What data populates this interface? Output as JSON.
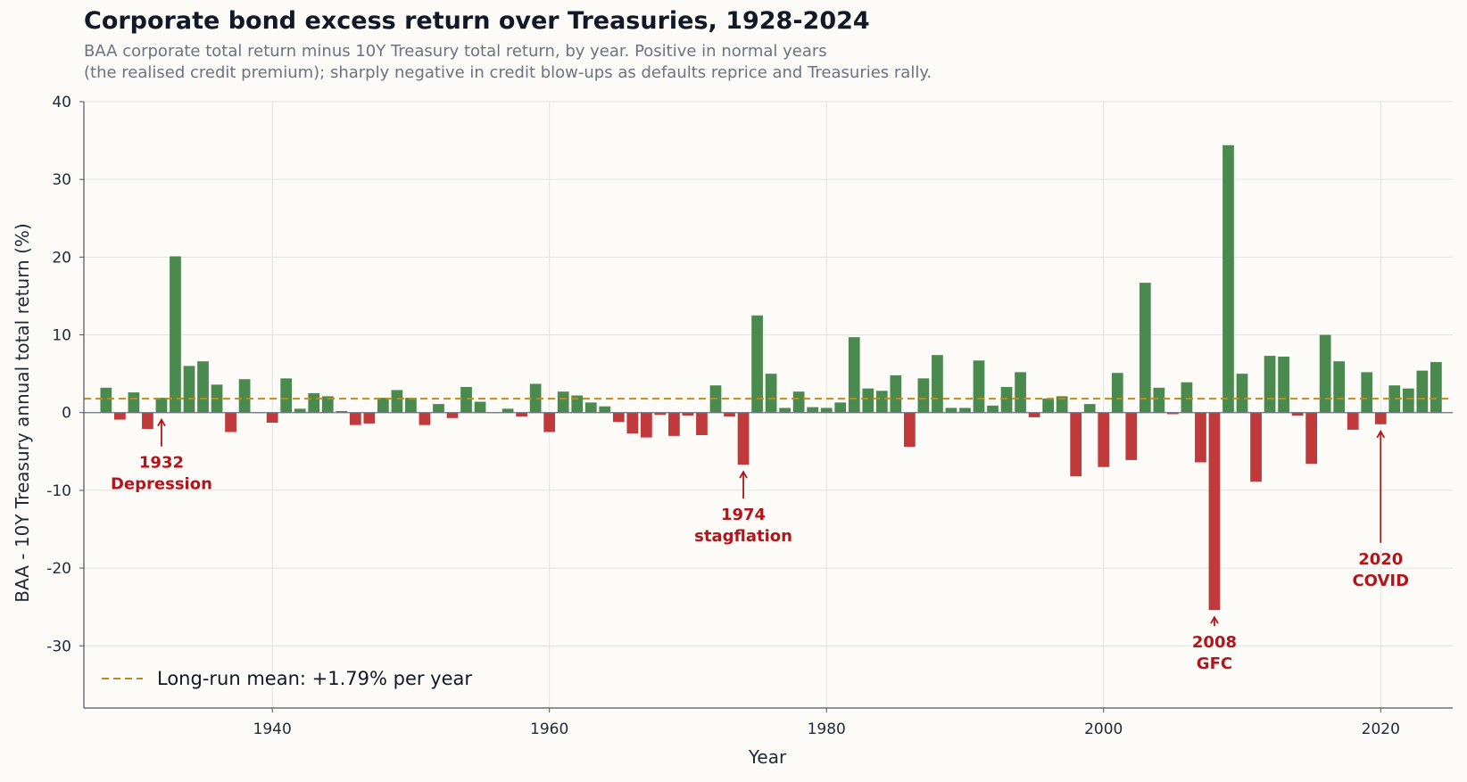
{
  "header": {
    "title": "Corporate bond excess return over Treasuries, 1928-2024",
    "subtitle_line1": "BAA corporate total return minus 10Y Treasury total return, by year. Positive in normal years",
    "subtitle_line2": "(the realised credit premium); sharply negative in credit blow-ups as defaults reprice and Treasuries rally."
  },
  "chart_data": {
    "type": "bar",
    "title": "Corporate bond excess return over Treasuries, 1928-2024",
    "xlabel": "Year",
    "ylabel": "BAA - 10Y Treasury annual total return (%)",
    "xlim": [
      1926.4,
      2025.2
    ],
    "ylim": [
      -38,
      40
    ],
    "xticks": [
      1940,
      1960,
      1980,
      2000,
      2020
    ],
    "yticks": [
      -30,
      -20,
      -10,
      0,
      10,
      20,
      30,
      40
    ],
    "grid": true,
    "legend_position": "bottom-left",
    "mean": {
      "value": 1.79,
      "label": "Long-run mean: +1.79% per year"
    },
    "colors": {
      "positive": "#4a8a4e",
      "negative": "#c0393b",
      "mean": "#c08a1a",
      "annotation": "#b0161c"
    },
    "years": [
      1928,
      1929,
      1930,
      1931,
      1932,
      1933,
      1934,
      1935,
      1936,
      1937,
      1938,
      1939,
      1940,
      1941,
      1942,
      1943,
      1944,
      1945,
      1946,
      1947,
      1948,
      1949,
      1950,
      1951,
      1952,
      1953,
      1954,
      1955,
      1956,
      1957,
      1958,
      1959,
      1960,
      1961,
      1962,
      1963,
      1964,
      1965,
      1966,
      1967,
      1968,
      1969,
      1970,
      1971,
      1972,
      1973,
      1974,
      1975,
      1976,
      1977,
      1978,
      1979,
      1980,
      1981,
      1982,
      1983,
      1984,
      1985,
      1986,
      1987,
      1988,
      1989,
      1990,
      1991,
      1992,
      1993,
      1994,
      1995,
      1996,
      1997,
      1998,
      1999,
      2000,
      2001,
      2002,
      2003,
      2004,
      2005,
      2006,
      2007,
      2008,
      2009,
      2010,
      2011,
      2012,
      2013,
      2014,
      2015,
      2016,
      2017,
      2018,
      2019,
      2020,
      2021,
      2022,
      2023,
      2024
    ],
    "values": [
      3.2,
      -0.9,
      2.6,
      -2.1,
      1.9,
      20.1,
      6.0,
      6.6,
      3.6,
      -2.5,
      4.3,
      0.0,
      -1.3,
      4.4,
      0.5,
      2.5,
      2.1,
      0.2,
      -1.6,
      -1.4,
      1.9,
      2.9,
      1.9,
      -1.6,
      1.1,
      -0.7,
      3.3,
      1.4,
      0.0,
      0.5,
      -0.5,
      3.7,
      -2.5,
      2.7,
      2.2,
      1.3,
      0.8,
      -1.2,
      -2.7,
      -3.2,
      -0.3,
      -3.0,
      -0.4,
      -2.9,
      3.5,
      -0.5,
      -6.7,
      12.5,
      5.0,
      0.6,
      2.7,
      0.7,
      0.6,
      1.3,
      9.7,
      3.1,
      2.8,
      4.8,
      -4.4,
      4.4,
      7.4,
      0.6,
      0.6,
      6.7,
      0.9,
      3.3,
      5.2,
      -0.6,
      1.8,
      2.1,
      -8.2,
      1.1,
      -7.0,
      5.1,
      -6.1,
      16.7,
      3.2,
      -0.2,
      3.9,
      -6.4,
      -25.4,
      34.4,
      5.0,
      -8.9,
      7.3,
      7.2,
      -0.4,
      -6.6,
      10.0,
      6.6,
      -2.2,
      5.2,
      -1.5,
      3.5,
      3.1,
      5.4,
      6.5
    ],
    "annotations": [
      {
        "year": 1932,
        "line1": "1932",
        "line2": "Depression"
      },
      {
        "year": 1974,
        "line1": "1974",
        "line2": "stagflation"
      },
      {
        "year": 2008,
        "line1": "2008",
        "line2": "GFC"
      },
      {
        "year": 2020,
        "line1": "2020",
        "line2": "COVID"
      }
    ]
  }
}
